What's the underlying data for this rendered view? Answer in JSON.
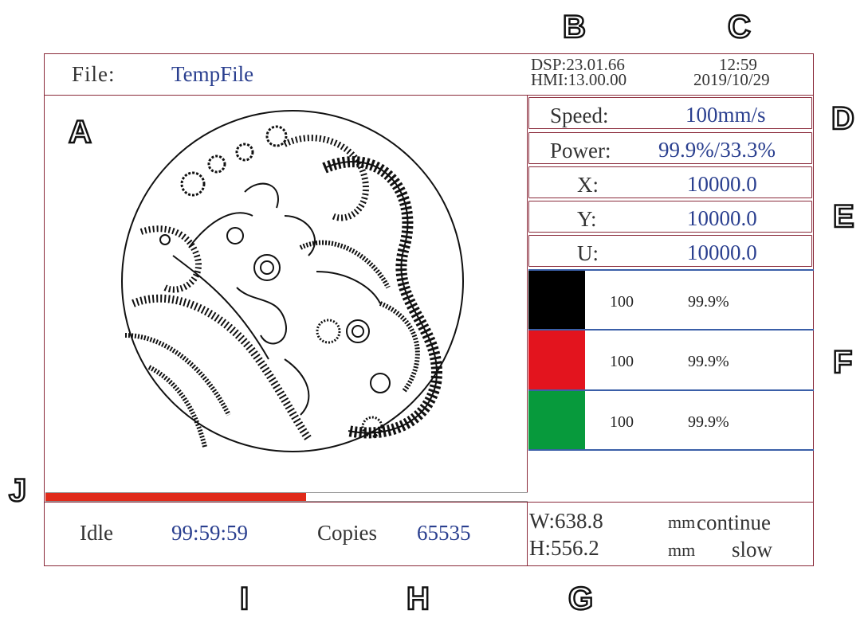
{
  "header": {
    "file_label": "File:",
    "file_name": "TempFile",
    "dsp_version": "DSP:23.01.66",
    "hmi_version": "HMI:13.00.00",
    "time": "12:59",
    "date": "2019/10/29"
  },
  "params": {
    "speed_label": "Speed:",
    "speed_value": "100mm/s",
    "power_label": "Power:",
    "power_value": "99.9%/33.3%",
    "x_label": "X:",
    "x_value": "10000.0",
    "y_label": "Y:",
    "y_value": "10000.0",
    "u_label": "U:",
    "u_value": "10000.0"
  },
  "layers": [
    {
      "color": "#000000",
      "speed": "100",
      "power": "99.9%"
    },
    {
      "color": "#e3141e",
      "speed": "100",
      "power": "99.9%"
    },
    {
      "color": "#079a3c",
      "speed": "100",
      "power": "99.9%"
    }
  ],
  "status": {
    "state": "Idle",
    "elapsed": "99:59:59",
    "copies_label": "Copies",
    "copies_value": "65535",
    "width": "W:638.8",
    "height": "H:556.2",
    "width_unit": "mm",
    "height_unit": "mm",
    "mode": "continue",
    "speed_mode": "slow"
  },
  "progress": {
    "fraction": 0.54,
    "color": "#e02a1a"
  },
  "annotations": {
    "A": "A",
    "B": "B",
    "C": "C",
    "D": "D",
    "E": "E",
    "F": "F",
    "G": "G",
    "H": "H",
    "I": "I",
    "J": "J"
  },
  "preview": {
    "description_icon": "dragon-phoenix-engraving-icon"
  }
}
